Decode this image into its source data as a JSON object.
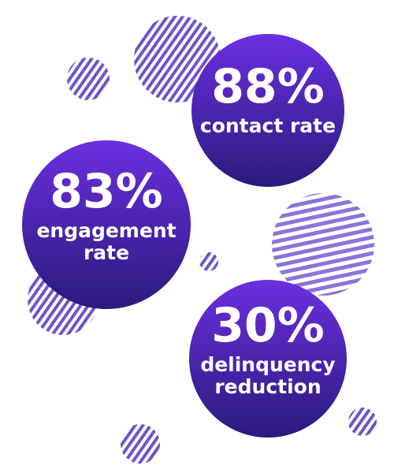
{
  "stats": [
    {
      "value": "88%",
      "label": [
        "contact rate"
      ]
    },
    {
      "value": "83%",
      "label": [
        "engagement",
        "rate"
      ]
    },
    {
      "value": "30%",
      "label": [
        "delinquency",
        "reduction"
      ]
    }
  ]
}
